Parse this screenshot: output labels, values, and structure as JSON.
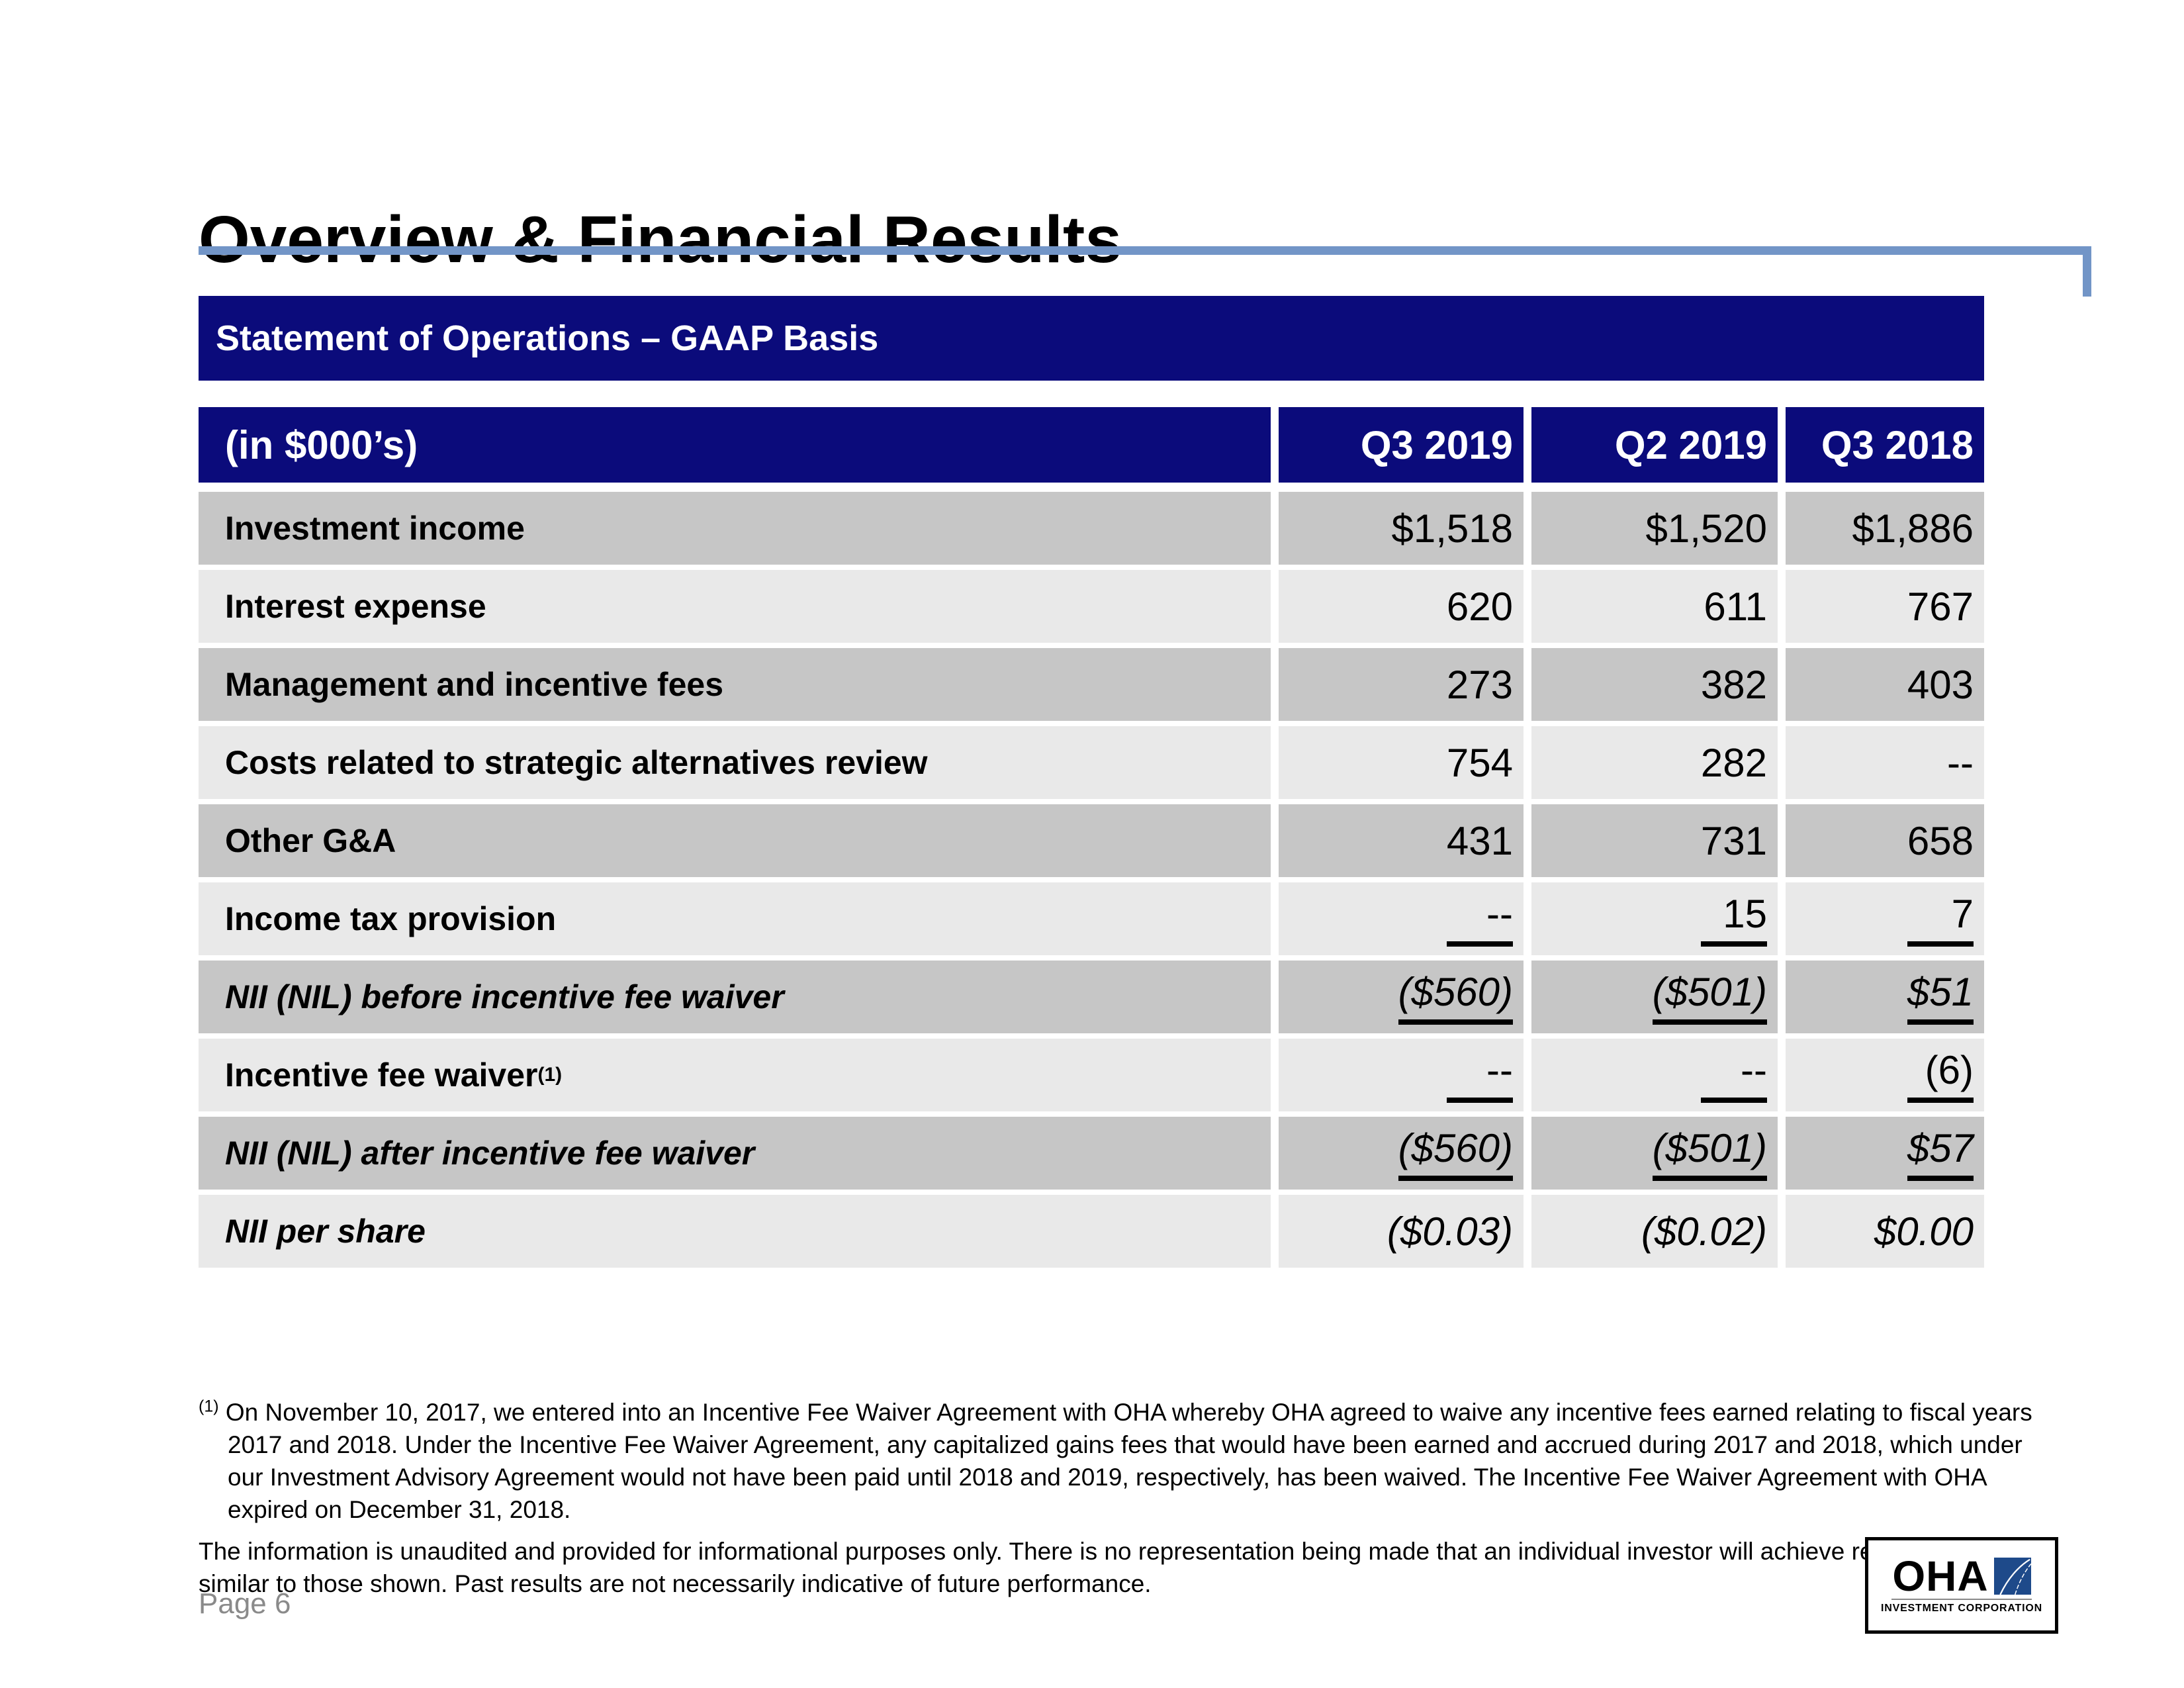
{
  "page": {
    "title": "Overview & Financial Results",
    "banner": "Statement of Operations – GAAP Basis",
    "page_number": "Page 6"
  },
  "colors": {
    "navy": "#0b0b7b",
    "rule_blue": "#7295c7",
    "row_dark": "#c6c6c6",
    "row_light": "#e9e9e9",
    "logo_blue": "#1e4a8a"
  },
  "table": {
    "unit_label": "(in $000’s)",
    "columns": [
      "Q3 2019",
      "Q2 2019",
      "Q3 2018"
    ],
    "rows": [
      {
        "label": "Investment income",
        "values": [
          "$1,518",
          "$1,520",
          "$1,886"
        ],
        "shade": "dark",
        "italic": false,
        "rule": false
      },
      {
        "label": "Interest expense",
        "values": [
          "620",
          "611",
          "767"
        ],
        "shade": "light",
        "italic": false,
        "rule": false
      },
      {
        "label": "Management and incentive fees",
        "values": [
          "273",
          "382",
          "403"
        ],
        "shade": "dark",
        "italic": false,
        "rule": false
      },
      {
        "label": "Costs related to strategic alternatives review",
        "values": [
          "754",
          "282",
          "--"
        ],
        "shade": "light",
        "italic": false,
        "rule": false
      },
      {
        "label": "Other G&A",
        "values": [
          "431",
          "731",
          "658"
        ],
        "shade": "dark",
        "italic": false,
        "rule": false
      },
      {
        "label": "Income tax provision",
        "values": [
          "--",
          "15",
          "7"
        ],
        "shade": "light",
        "italic": false,
        "rule": true
      },
      {
        "label": "NII (NIL) before incentive fee waiver",
        "values": [
          "($560)",
          "($501)",
          "$51"
        ],
        "shade": "dark",
        "italic": true,
        "rule": true
      },
      {
        "label": "Incentive fee waiver",
        "label_sup": "(1)",
        "values": [
          "--",
          "--",
          "(6)"
        ],
        "shade": "light",
        "italic": false,
        "rule": true
      },
      {
        "label": "NII (NIL) after incentive fee waiver",
        "values": [
          "($560)",
          "($501)",
          "$57"
        ],
        "shade": "dark",
        "italic": true,
        "rule": true
      },
      {
        "label": "NII per share",
        "values": [
          "($0.03)",
          "($0.02)",
          "$0.00"
        ],
        "shade": "light",
        "italic": true,
        "rule": false
      }
    ]
  },
  "footnote": {
    "marker": "(1)",
    "text": "On November 10, 2017, we entered into an Incentive Fee Waiver Agreement with OHA whereby OHA agreed to waive any incentive fees earned relating to fiscal years 2017 and 2018. Under the Incentive Fee Waiver Agreement, any capitalized gains fees that would have been earned and accrued during 2017 and 2018, which under our Investment Advisory Agreement would not have been paid until 2018 and 2019, respectively, has been waived. The Incentive Fee Waiver Agreement with OHA expired on December 31, 2018."
  },
  "disclaimer": "The information is unaudited and provided for informational purposes only. There is no representation being made that an individual investor will achieve returns similar to those shown. Past results are not necessarily indicative of future performance.",
  "logo": {
    "name": "OHA",
    "subtitle": "INVESTMENT CORPORATION"
  }
}
